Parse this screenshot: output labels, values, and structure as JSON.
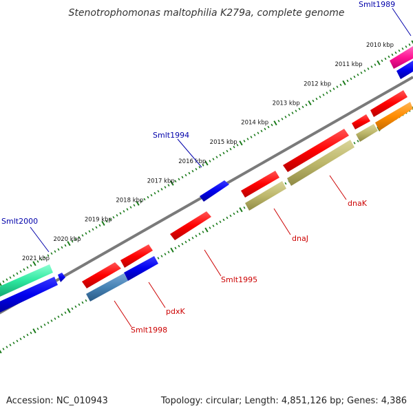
{
  "title": "Stenotrophomonas maltophilia K279a, complete genome",
  "footer": {
    "accession": "Accession: NC_010943",
    "summary": "Topology: circular; Length: 4,851,126 bp; Genes: 4,386"
  },
  "ticks": [
    {
      "label": "2010 kbp"
    },
    {
      "label": "2011 kbp"
    },
    {
      "label": "2012 kbp"
    },
    {
      "label": "2013 kbp"
    },
    {
      "label": "2014 kbp"
    },
    {
      "label": "2015 kbp"
    },
    {
      "label": "2016 kbp"
    },
    {
      "label": "2017 kbp"
    },
    {
      "label": "2018 kbp"
    },
    {
      "label": "2019 kbp"
    },
    {
      "label": "2020 kbp"
    },
    {
      "label": "2021 kbp"
    }
  ],
  "gene_labels": {
    "smlt1989": "Smlt1989",
    "smlt1994": "Smlt1994",
    "smlt2000": "Smlt2000",
    "dnak": "dnaK",
    "dnaj": "dnaJ",
    "smlt1995": "Smlt1995",
    "pdxk": "pdxK",
    "smlt1998": "Smlt1998"
  },
  "colors": {
    "backbone": "#808080",
    "tick": "#1a7a1a",
    "red": "#ff0000",
    "blue": "#0000ee",
    "khaki": "#bdb76b",
    "steelblue": "#4682b4",
    "orange": "#ff8c00",
    "pink": "#ff1493",
    "green": "#2ee8a0"
  }
}
